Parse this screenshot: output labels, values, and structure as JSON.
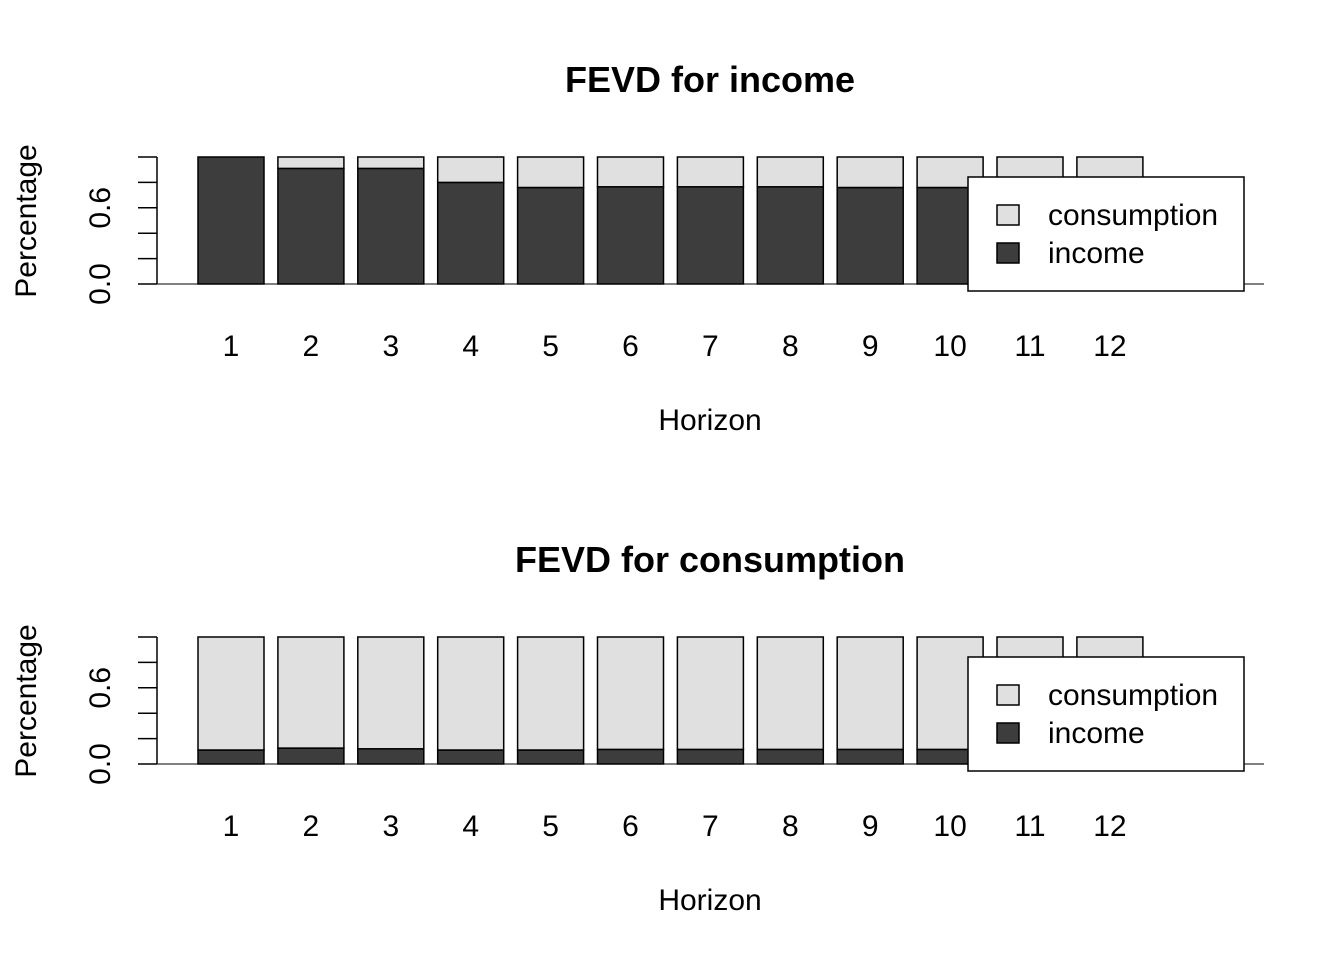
{
  "chart_data": [
    {
      "type": "bar",
      "stacked": true,
      "title": "FEVD for income",
      "xlabel": "Horizon",
      "ylabel": "Percentage",
      "ylim": [
        0,
        1
      ],
      "yticks": [
        "0.0",
        "0.6"
      ],
      "categories": [
        "1",
        "2",
        "3",
        "4",
        "5",
        "6",
        "7",
        "8",
        "9",
        "10",
        "11",
        "12"
      ],
      "series": [
        {
          "name": "income",
          "color": "#3d3d3d",
          "values": [
            1.0,
            0.91,
            0.91,
            0.8,
            0.76,
            0.765,
            0.765,
            0.765,
            0.76,
            0.76,
            0.76,
            0.76
          ]
        },
        {
          "name": "consumption",
          "color": "#e0e0e0",
          "values": [
            0.0,
            0.09,
            0.09,
            0.2,
            0.24,
            0.235,
            0.235,
            0.235,
            0.24,
            0.24,
            0.24,
            0.24
          ]
        }
      ],
      "legend": {
        "position": "right",
        "entries": [
          "consumption",
          "income"
        ]
      }
    },
    {
      "type": "bar",
      "stacked": true,
      "title": "FEVD for consumption",
      "xlabel": "Horizon",
      "ylabel": "Percentage",
      "ylim": [
        0,
        1
      ],
      "yticks": [
        "0.0",
        "0.6"
      ],
      "categories": [
        "1",
        "2",
        "3",
        "4",
        "5",
        "6",
        "7",
        "8",
        "9",
        "10",
        "11",
        "12"
      ],
      "series": [
        {
          "name": "income",
          "color": "#3d3d3d",
          "values": [
            0.11,
            0.125,
            0.12,
            0.11,
            0.11,
            0.115,
            0.115,
            0.115,
            0.115,
            0.115,
            0.115,
            0.115
          ]
        },
        {
          "name": "consumption",
          "color": "#e0e0e0",
          "values": [
            0.89,
            0.875,
            0.88,
            0.89,
            0.89,
            0.885,
            0.885,
            0.885,
            0.885,
            0.885,
            0.885,
            0.885
          ]
        }
      ],
      "legend": {
        "position": "right",
        "entries": [
          "consumption",
          "income"
        ]
      }
    }
  ]
}
